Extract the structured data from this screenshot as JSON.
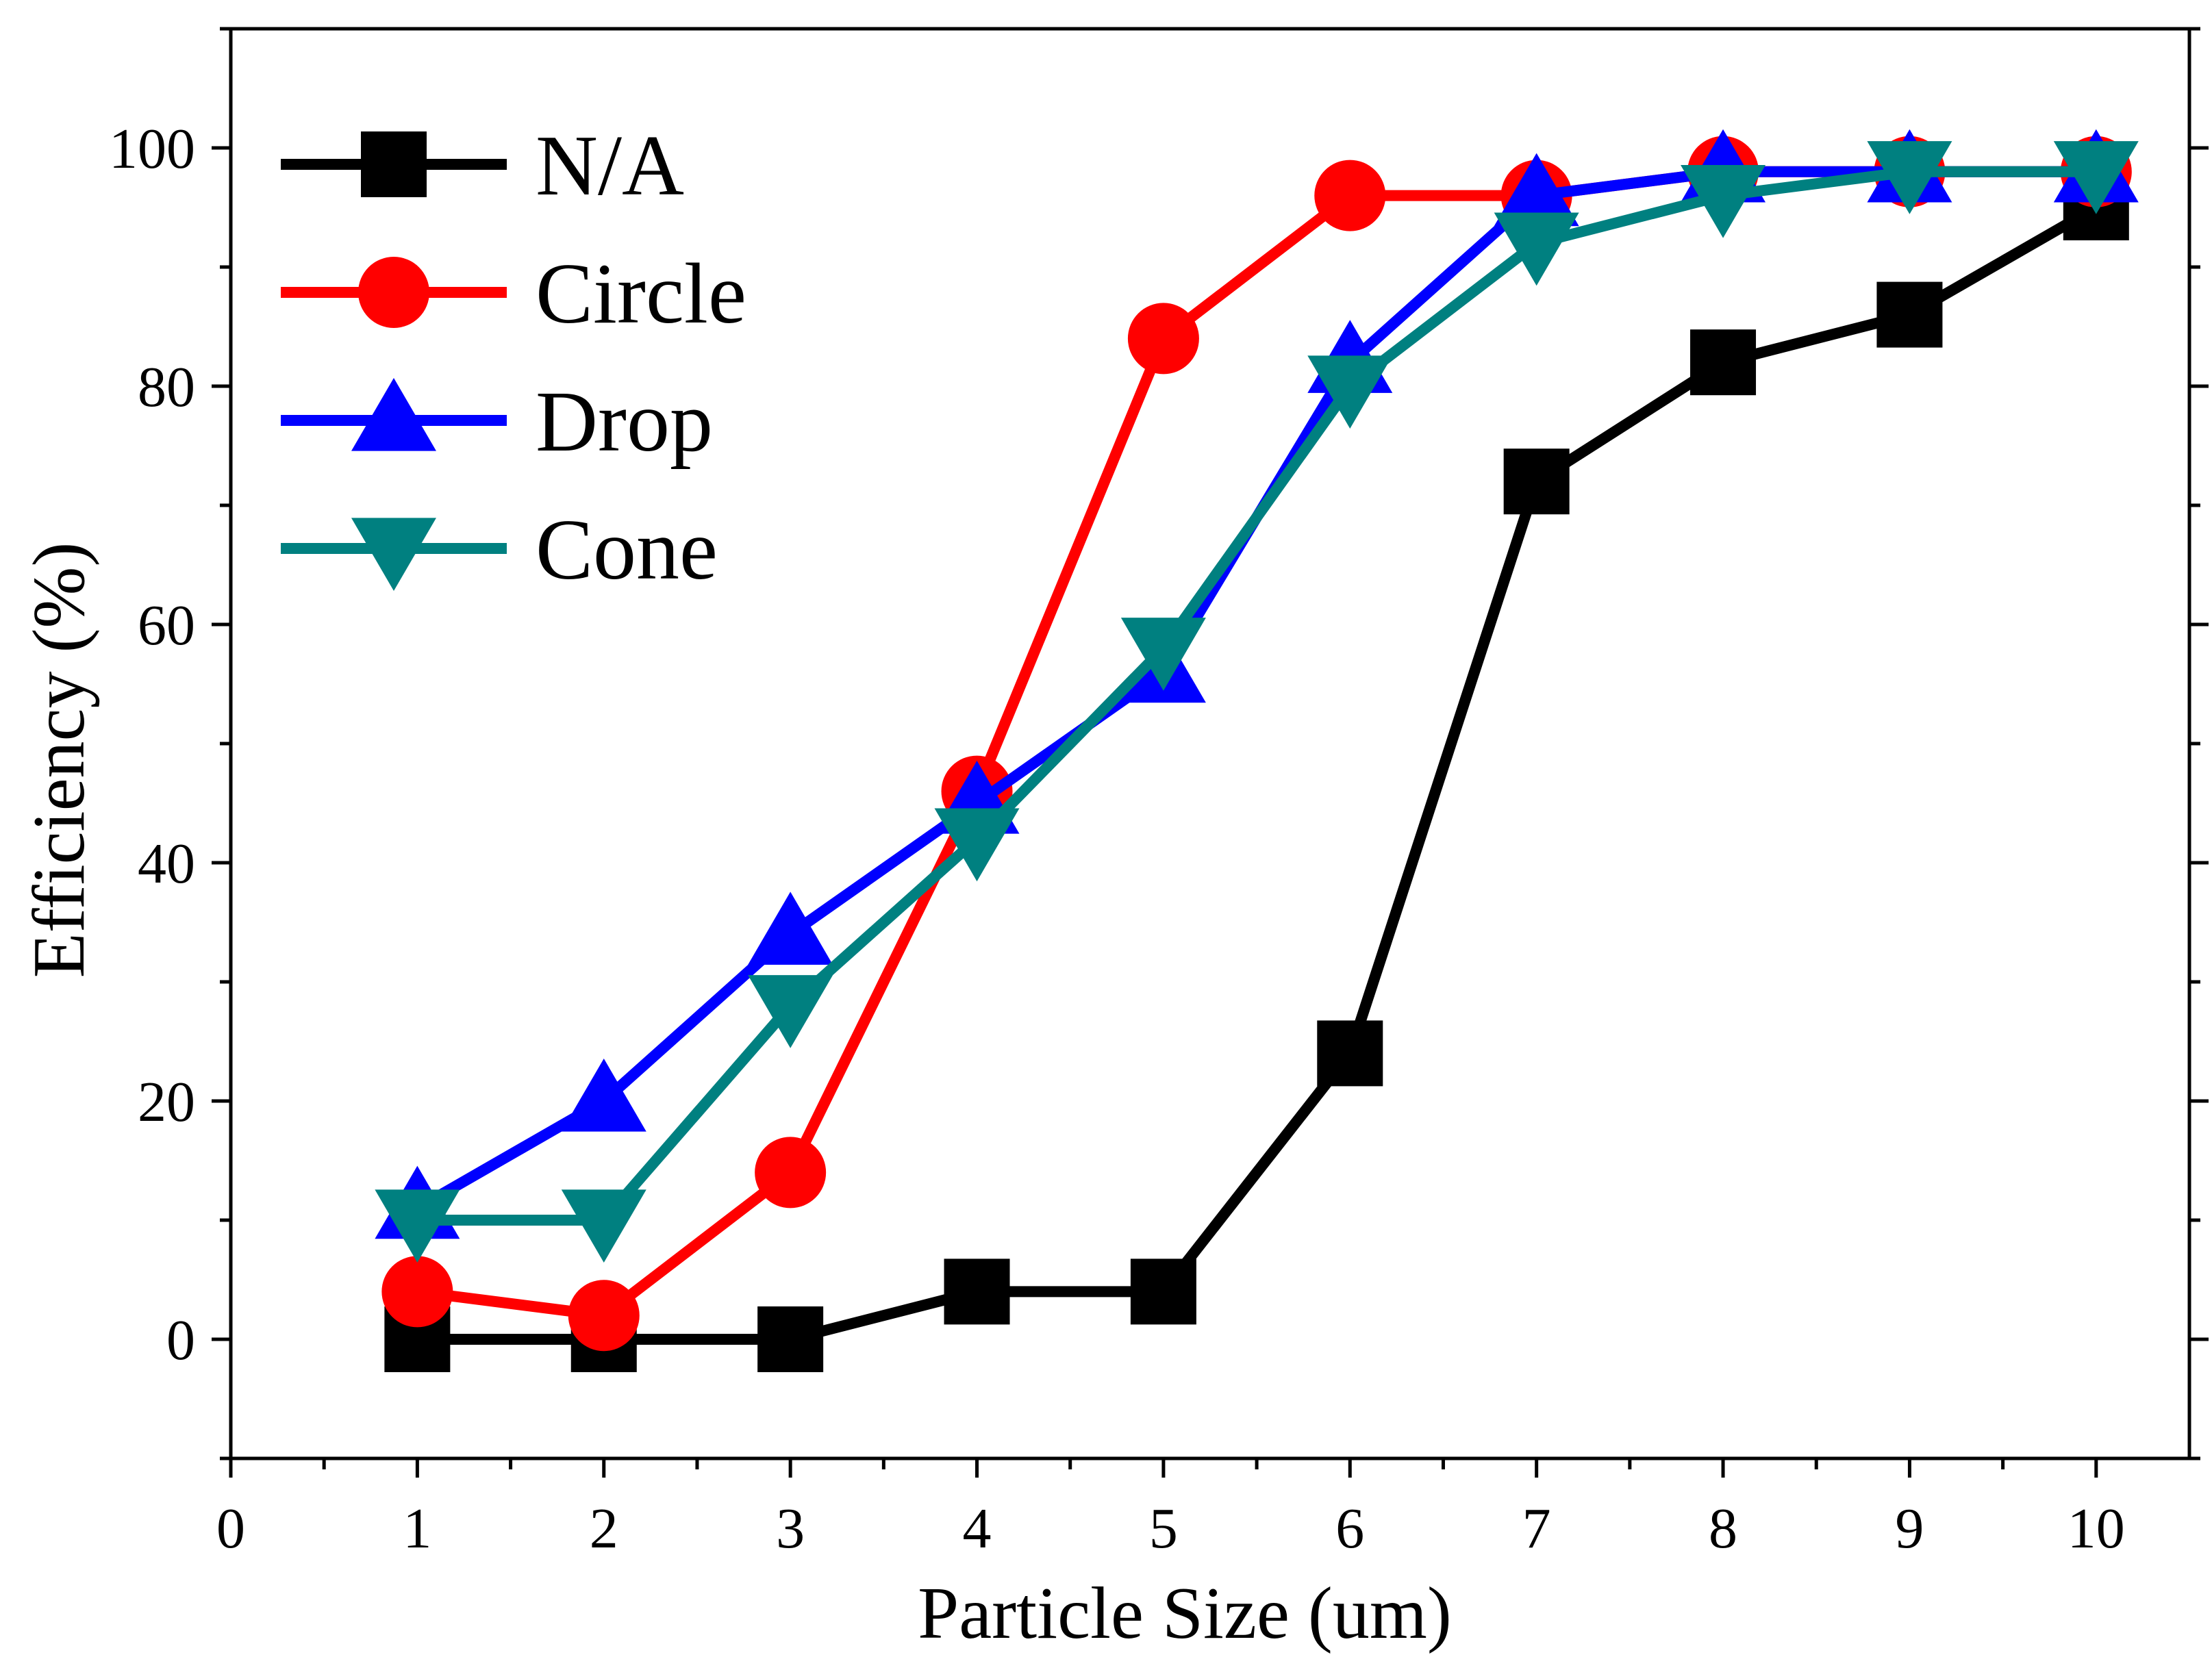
{
  "chart_data": {
    "type": "line",
    "title": "",
    "xlabel": "Particle Size (um)",
    "ylabel": "Efficiency (%)",
    "xlim": [
      0,
      10.5
    ],
    "ylim": [
      -10,
      110
    ],
    "xticks": [
      0,
      1,
      2,
      3,
      4,
      5,
      6,
      7,
      8,
      9,
      10
    ],
    "yticks": [
      0,
      20,
      40,
      60,
      80,
      100
    ],
    "legend_position": "top-left",
    "grid": false,
    "x": [
      1,
      2,
      3,
      4,
      5,
      6,
      7,
      8,
      9,
      10
    ],
    "series": [
      {
        "name": "N/A",
        "marker": "square",
        "color": "#000000",
        "values": [
          0,
          0,
          0,
          4,
          4,
          24,
          72,
          82,
          86,
          95
        ]
      },
      {
        "name": "Circle",
        "marker": "circle",
        "color": "#ff0000",
        "values": [
          4,
          2,
          14,
          46,
          84,
          96,
          96,
          98,
          98,
          98
        ]
      },
      {
        "name": "Drop",
        "marker": "triangle-up",
        "color": "#0000ff",
        "values": [
          11,
          20,
          34,
          45,
          56,
          82,
          96,
          98,
          98,
          98
        ]
      },
      {
        "name": "Cone",
        "marker": "triangle-down",
        "color": "#008080",
        "values": [
          10,
          10,
          28,
          42,
          58,
          80,
          92,
          96,
          98,
          98
        ]
      }
    ]
  }
}
